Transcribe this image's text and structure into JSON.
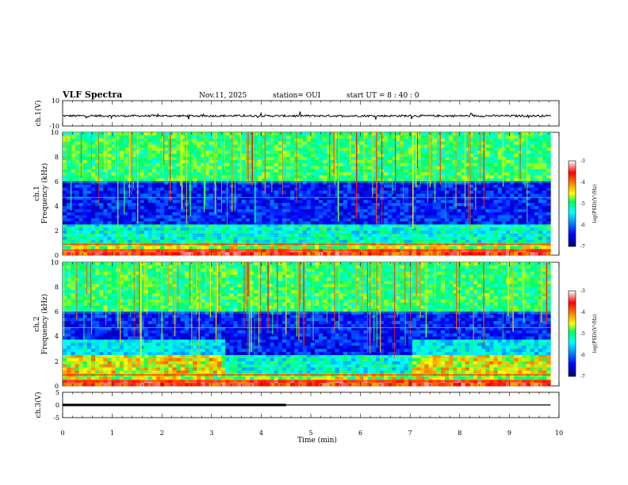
{
  "header": {
    "title": "VLF Spectra",
    "date": "Nov.11, 2025",
    "station": "station= OUI",
    "start": "start  UT =   8 : 40 : 0"
  },
  "chart_data": [
    {
      "type": "line",
      "panel": "ch1-waveform",
      "ylabel": "ch.1(V)",
      "ylim": [
        -10,
        10
      ],
      "ytick_labels": [
        "10",
        "-10"
      ],
      "x": [
        0,
        10
      ],
      "series": [
        {
          "values_approx": [
            -2,
            -2
          ]
        }
      ]
    },
    {
      "type": "heatmap",
      "panel": "ch1-spectrogram",
      "ylabel_top": "ch.1",
      "ylabel": "Frequency (kHz)",
      "ylim": [
        0,
        10
      ],
      "ytick_labels": [
        "0",
        "2",
        "4",
        "6",
        "8",
        "10"
      ],
      "xlim": [
        0,
        10
      ],
      "data_extent_min": [
        0,
        9.83
      ],
      "colorbar": {
        "label": "log(PSD)(V²/Hz)",
        "range": [
          -7,
          -3
        ],
        "tick_labels": [
          "-3",
          "-4",
          "-5",
          "-6",
          "-7"
        ]
      }
    },
    {
      "type": "heatmap",
      "panel": "ch2-spectrogram",
      "ylabel_top": "ch.2",
      "ylabel": "Frequency (kHz)",
      "ylim": [
        0,
        10
      ],
      "ytick_labels": [
        "0",
        "2",
        "4",
        "6",
        "8",
        "10"
      ],
      "xlim": [
        0,
        10
      ],
      "data_extent_min": [
        0,
        9.83
      ],
      "colorbar": {
        "label": "log(PSD)(V²/Hz)",
        "range": [
          -7,
          -3
        ],
        "tick_labels": [
          "-3",
          "-4",
          "-5",
          "-6",
          "-7"
        ]
      }
    },
    {
      "type": "line",
      "panel": "ch3-signal",
      "ylabel": "ch.3(V)",
      "ylim": [
        -5,
        5
      ],
      "ytick_labels": [
        "5",
        "0",
        "-5"
      ],
      "x": [
        0,
        4.5,
        4.5,
        9.83
      ],
      "series": [
        {
          "values": [
            0,
            0,
            0,
            0
          ],
          "note_thick_until_min": 4.5
        }
      ]
    }
  ],
  "xaxis": {
    "label": "Time (min)",
    "range": [
      0,
      10
    ],
    "tick_labels": [
      "0",
      "1",
      "2",
      "3",
      "4",
      "5",
      "6",
      "7",
      "8",
      "9",
      "10"
    ]
  },
  "colors": {
    "colormap": [
      "#000080",
      "#0000ff",
      "#00a0ff",
      "#00ffff",
      "#00ff60",
      "#ffff00",
      "#ff8000",
      "#ff0000",
      "#ffffff"
    ]
  }
}
